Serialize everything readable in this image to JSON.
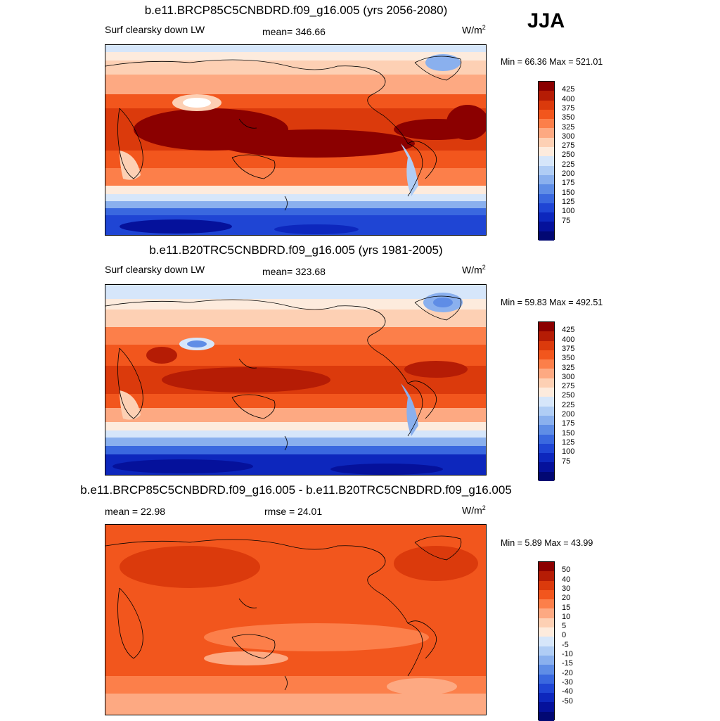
{
  "season": "JJA",
  "panels": [
    {
      "title": "b.e11.BRCP85C5CNBDRD.f09_g16.005 (yrs 2056-2080)",
      "left_label": "Surf clearsky down LW",
      "center_label": "mean= 346.66",
      "units": "W/m",
      "units_sup": "2",
      "minmax": "Min =  66.36 Max = 521.01",
      "colorbar": {
        "colors": [
          "#8b0000",
          "#b51c05",
          "#db3a0c",
          "#f2561d",
          "#fc7f4a",
          "#fda982",
          "#fdd0b4",
          "#fdebdd",
          "#d6e6fa",
          "#b0cdf5",
          "#8ab0ee",
          "#5f8de6",
          "#3a68df",
          "#1f45d4",
          "#0d27bd",
          "#05119b",
          "#020873"
        ],
        "labels": [
          "425",
          "400",
          "375",
          "350",
          "325",
          "300",
          "275",
          "250",
          "225",
          "200",
          "175",
          "150",
          "125",
          "100",
          "75"
        ]
      }
    },
    {
      "title": "b.e11.B20TRC5CNBDRD.f09_g16.005 (yrs 1981-2005)",
      "left_label": "Surf clearsky down LW",
      "center_label": "mean= 323.68",
      "units": "W/m",
      "units_sup": "2",
      "minmax": "Min =  59.83 Max = 492.51",
      "colorbar": {
        "colors": [
          "#8b0000",
          "#b51c05",
          "#db3a0c",
          "#f2561d",
          "#fc7f4a",
          "#fda982",
          "#fdd0b4",
          "#fdebdd",
          "#d6e6fa",
          "#b0cdf5",
          "#8ab0ee",
          "#5f8de6",
          "#3a68df",
          "#1f45d4",
          "#0d27bd",
          "#05119b",
          "#020873"
        ],
        "labels": [
          "425",
          "400",
          "375",
          "350",
          "325",
          "300",
          "275",
          "250",
          "225",
          "200",
          "175",
          "150",
          "125",
          "100",
          "75"
        ]
      }
    },
    {
      "title": "b.e11.BRCP85C5CNBDRD.f09_g16.005 - b.e11.B20TRC5CNBDRD.f09_g16.005",
      "left_label": "mean =  22.98",
      "center_label": "rmse =  24.01",
      "units": "W/m",
      "units_sup": "2",
      "minmax": "Min =   5.89 Max =  43.99",
      "colorbar": {
        "colors": [
          "#8b0000",
          "#b51c05",
          "#db3a0c",
          "#f2561d",
          "#fc7f4a",
          "#fda982",
          "#fdd0b4",
          "#fdebdd",
          "#d6e6fa",
          "#b0cdf5",
          "#8ab0ee",
          "#5f8de6",
          "#3a68df",
          "#1f45d4",
          "#0d27bd",
          "#05119b",
          "#020873"
        ],
        "labels": [
          "50",
          "40",
          "30",
          "20",
          "15",
          "10",
          "5",
          "0",
          "-5",
          "-10",
          "-15",
          "-20",
          "-30",
          "-40",
          "-50"
        ]
      }
    }
  ]
}
